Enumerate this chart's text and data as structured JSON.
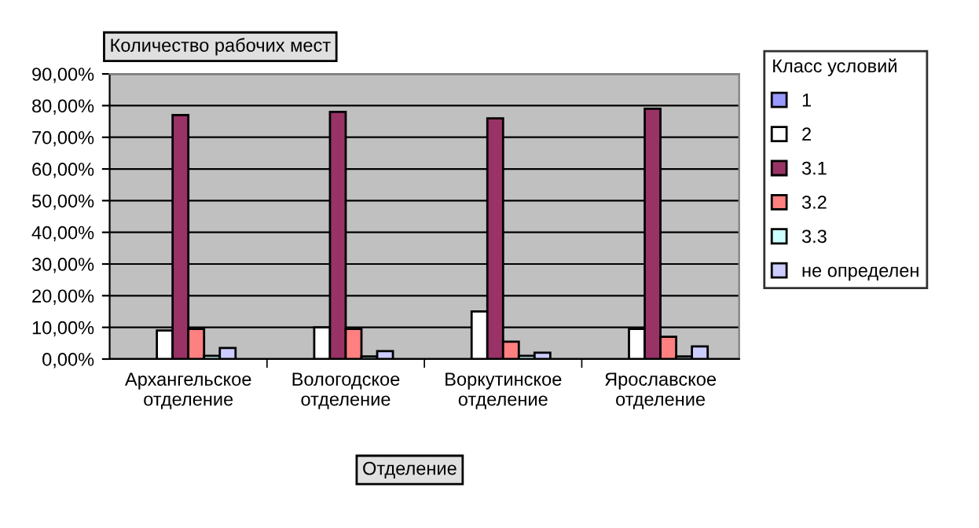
{
  "chart_data": {
    "type": "bar",
    "title": "Количество рабочих мест",
    "xlabel": "Отделение",
    "legend_title": "Класс условий",
    "legend": "right",
    "categories": [
      "Архангельское\nотделение",
      "Вологодское\nотделение",
      "Воркутинское\nотделение",
      "Ярославское\nотделение"
    ],
    "series": [
      {
        "name": "1",
        "color": "#9999ff",
        "values": [
          null,
          null,
          null,
          null
        ]
      },
      {
        "name": "2",
        "color": "#ffffff",
        "values": [
          9,
          10,
          15,
          9.5
        ]
      },
      {
        "name": "3.1",
        "color": "#993366",
        "values": [
          77,
          78,
          76,
          79
        ]
      },
      {
        "name": "3.2",
        "color": "#ff8080",
        "values": [
          9.5,
          9.5,
          5.5,
          7
        ]
      },
      {
        "name": "3.3",
        "color": "#ccffff",
        "values": [
          1,
          0.8,
          1,
          0.8
        ]
      },
      {
        "name": "не определен",
        "color": "#ccccff",
        "values": [
          3.5,
          2.5,
          2,
          4
        ]
      }
    ],
    "ylim": [
      0,
      90
    ],
    "yticks": [
      {
        "value": 0,
        "label": "0,00%"
      },
      {
        "value": 10,
        "label": "10,00%"
      },
      {
        "value": 20,
        "label": "20,00%"
      },
      {
        "value": 30,
        "label": "30,00%"
      },
      {
        "value": 40,
        "label": "40,00%"
      },
      {
        "value": 50,
        "label": "50,00%"
      },
      {
        "value": 60,
        "label": "60,00%"
      },
      {
        "value": 70,
        "label": "70,00%"
      },
      {
        "value": 80,
        "label": "80,00%"
      },
      {
        "value": 90,
        "label": "90,00%"
      }
    ],
    "grid": "y"
  }
}
